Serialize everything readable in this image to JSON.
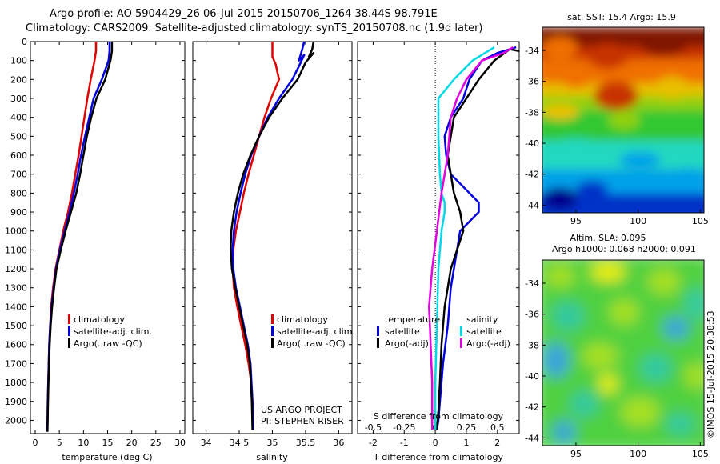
{
  "title": {
    "line1": "Argo profile: AO 5904429_26 06-Jul-2015 20150706_1264 38.44S 98.791E",
    "line2": "Climatology: CARS2009. Satellite-adjusted climatology: synTS_20150708.nc (1.9d later)"
  },
  "credit": "©IMOS 15-Jul-2015 20:38:53",
  "chart_data": [
    {
      "type": "line",
      "panel": "temperature",
      "xlabel": "temperature (deg C)",
      "xlim": [
        -1,
        31
      ],
      "xticks": [
        0,
        5,
        10,
        15,
        20,
        25,
        30
      ],
      "ylim": [
        2070,
        0
      ],
      "yticks": [
        0,
        100,
        200,
        300,
        400,
        500,
        600,
        700,
        800,
        900,
        1000,
        1100,
        1200,
        1300,
        1400,
        1500,
        1600,
        1700,
        1800,
        1900,
        2000
      ],
      "legend": {
        "placement": "lower-right",
        "entries": [
          "climatology",
          "satellite-adj. clim.",
          "Argo(..raw -QC)"
        ]
      },
      "series": [
        {
          "name": "climatology",
          "color": "#e00000",
          "x": [
            12.6,
            12.6,
            12.3,
            11.5,
            10.8,
            10.2,
            9.6,
            9.0,
            8.3,
            7.6,
            6.8,
            5.8,
            5.0,
            4.2,
            3.7,
            3.3,
            3.1,
            2.9,
            2.8,
            2.7,
            2.6,
            2.55,
            2.5,
            2.5
          ],
          "y": [
            0,
            50,
            100,
            200,
            300,
            400,
            500,
            600,
            700,
            800,
            900,
            1000,
            1100,
            1200,
            1300,
            1400,
            1500,
            1600,
            1700,
            1800,
            1900,
            2000,
            2050,
            2060
          ]
        },
        {
          "name": "satellite-adj. clim.",
          "color": "#0000e0",
          "x": [
            15.4,
            15.4,
            15.2,
            13.8,
            12.1,
            11.2,
            10.3,
            9.5,
            8.8,
            8.0,
            7.1,
            6.1,
            5.1,
            4.3,
            3.8,
            3.4,
            3.1,
            2.9,
            2.8,
            2.7,
            2.6,
            2.55,
            2.5,
            2.5
          ],
          "y": [
            0,
            50,
            100,
            200,
            300,
            400,
            500,
            600,
            700,
            800,
            900,
            1000,
            1100,
            1200,
            1300,
            1400,
            1500,
            1600,
            1700,
            1800,
            1900,
            2000,
            2050,
            2060
          ]
        },
        {
          "name": "Argo(..raw -QC)",
          "color": "#000000",
          "x": [
            15.9,
            15.9,
            15.6,
            14.5,
            12.7,
            11.6,
            10.7,
            10.0,
            9.3,
            8.5,
            7.4,
            6.3,
            5.3,
            4.4,
            3.9,
            3.5,
            3.2,
            3.0,
            2.85,
            2.75,
            2.65,
            2.58,
            2.55,
            2.55
          ],
          "y": [
            0,
            50,
            100,
            200,
            300,
            400,
            500,
            600,
            700,
            800,
            900,
            1000,
            1100,
            1200,
            1300,
            1400,
            1500,
            1600,
            1700,
            1800,
            1900,
            2000,
            2050,
            2060
          ]
        }
      ]
    },
    {
      "type": "line",
      "panel": "salinity",
      "xlabel": "salinity",
      "xlim": [
        33.8,
        36.2
      ],
      "xticks": [
        34,
        34.5,
        35,
        35.5,
        36
      ],
      "xtick_labels": [
        "34",
        "34.5",
        "35",
        "35.5",
        "36"
      ],
      "ylim": [
        2070,
        0
      ],
      "legend": {
        "placement": "lower-right",
        "entries": [
          "climatology",
          "satellite-adj. clim.",
          "Argo(..raw -QC)"
        ]
      },
      "annotation": [
        "US ARGO PROJECT",
        "PI: STEPHEN RISER"
      ],
      "series": [
        {
          "name": "climatology",
          "color": "#e00000",
          "x": [
            35.0,
            35.0,
            35.05,
            35.1,
            34.98,
            34.88,
            34.8,
            34.72,
            34.64,
            34.57,
            34.51,
            34.45,
            34.41,
            34.4,
            34.42,
            34.47,
            34.53,
            34.59,
            34.64,
            34.68,
            34.7,
            34.71
          ],
          "y": [
            0,
            80,
            120,
            200,
            300,
            400,
            500,
            600,
            700,
            800,
            900,
            1000,
            1100,
            1200,
            1300,
            1400,
            1500,
            1600,
            1700,
            1800,
            1900,
            2050
          ]
        },
        {
          "name": "satellite-adj. clim.",
          "color": "#0000e0",
          "x": [
            35.48,
            35.45,
            35.4,
            35.48,
            35.4,
            35.3,
            35.1,
            34.93,
            34.8,
            34.68,
            34.59,
            34.52,
            34.46,
            34.42,
            34.4,
            34.41,
            34.45,
            34.51,
            34.57,
            34.63,
            34.67,
            34.7,
            34.71
          ],
          "y": [
            0,
            40,
            100,
            70,
            130,
            200,
            300,
            400,
            500,
            600,
            700,
            800,
            900,
            1000,
            1100,
            1200,
            1300,
            1400,
            1500,
            1600,
            1700,
            1900,
            2050
          ]
        },
        {
          "name": "Argo(..raw -QC)",
          "color": "#000000",
          "x": [
            35.62,
            35.6,
            35.55,
            35.62,
            35.5,
            35.38,
            35.15,
            34.95,
            34.8,
            34.67,
            34.56,
            34.48,
            34.42,
            34.38,
            34.37,
            34.39,
            34.44,
            34.5,
            34.56,
            34.62,
            34.66,
            34.69,
            34.7
          ],
          "y": [
            0,
            40,
            80,
            60,
            110,
            200,
            300,
            400,
            500,
            600,
            700,
            800,
            900,
            1000,
            1100,
            1200,
            1300,
            1400,
            1500,
            1600,
            1700,
            1900,
            2050
          ]
        }
      ]
    },
    {
      "type": "line",
      "panel": "difference",
      "xlabel": "T difference from climatology",
      "xlabel_top": "S difference from climatology",
      "xlim": [
        -2.5,
        2.7
      ],
      "xticks": [
        -2,
        -1,
        0,
        1,
        2
      ],
      "xtick_labels": [
        "-2",
        "-1",
        "0",
        "1",
        "2"
      ],
      "xticks_top": [
        -2,
        -1,
        0,
        1,
        2
      ],
      "xtick_labels_top": [
        "-0.5",
        "-0.25",
        "0",
        "0.25",
        "0.5"
      ],
      "ylim": [
        2070,
        0
      ],
      "zero_line": "dotted",
      "legend": {
        "placement": "lower",
        "headers": [
          "temperature",
          "salinity"
        ],
        "entries": [
          "satellite",
          "Argo(-adj)",
          "satellite",
          "Argo(-adj)"
        ]
      },
      "series": [
        {
          "name": "satellite",
          "group": "temperature",
          "color": "#0000e0",
          "x": [
            2.6,
            2.0,
            1.5,
            1.1,
            0.9,
            0.5,
            0.3,
            0.35,
            0.5,
            0.8,
            1.1,
            1.4,
            1.4,
            0.8,
            0.7,
            0.6,
            0.5,
            0.4,
            0.25,
            0.15,
            0.1,
            0.05
          ],
          "y": [
            30,
            60,
            100,
            200,
            300,
            400,
            500,
            600,
            700,
            750,
            800,
            850,
            900,
            1000,
            1100,
            1200,
            1300,
            1500,
            1700,
            1900,
            2000,
            2050
          ]
        },
        {
          "name": "Argo(-adj)",
          "group": "temperature",
          "color": "#000000",
          "x": [
            3.3,
            2.4,
            1.9,
            1.4,
            1.0,
            0.6,
            0.5,
            0.4,
            0.5,
            0.6,
            0.8,
            0.9,
            0.7,
            0.5,
            0.4,
            0.3,
            0.2,
            0.15,
            0.1,
            0.05
          ],
          "y": [
            70,
            40,
            100,
            200,
            300,
            400,
            500,
            600,
            700,
            800,
            900,
            1000,
            1100,
            1200,
            1300,
            1400,
            1600,
            1800,
            1950,
            2050
          ]
        },
        {
          "name": "satellite",
          "group": "salinity",
          "color": "#00d8e8",
          "x": [
            1.9,
            1.6,
            1.2,
            0.6,
            0.1,
            0.1,
            0.15,
            0.2,
            0.3,
            0.3,
            0.2,
            0.1,
            0.05,
            0.0,
            0.0
          ],
          "y": [
            30,
            60,
            100,
            200,
            300,
            500,
            700,
            800,
            850,
            900,
            1000,
            1200,
            1500,
            1800,
            2050
          ]
        },
        {
          "name": "Argo(-adj)",
          "group": "salinity",
          "color": "#e000e0",
          "x": [
            2.5,
            2.2,
            1.5,
            1.0,
            0.7,
            0.5,
            0.4,
            0.2,
            0.05,
            -0.1,
            -0.2,
            -0.15,
            -0.1,
            -0.1
          ],
          "y": [
            30,
            60,
            100,
            200,
            300,
            400,
            600,
            800,
            1000,
            1200,
            1400,
            1600,
            1800,
            2050
          ]
        }
      ]
    },
    {
      "type": "heatmap",
      "panel": "sst-map",
      "title": "sat. SST: 15.4 Argo: 15.9",
      "xlim": [
        92.3,
        105.3
      ],
      "xticks": [
        95,
        100,
        105
      ],
      "ylim": [
        -44.5,
        -32.5
      ],
      "yticks": [
        -44,
        -42,
        -40,
        -38,
        -36,
        -34
      ],
      "colors": [
        "#00008c",
        "#0030c8",
        "#00a0e8",
        "#20d8c0",
        "#30c830",
        "#90d010",
        "#e8c000",
        "#f07000",
        "#c83000",
        "#801800"
      ]
    },
    {
      "type": "heatmap",
      "panel": "sla-map",
      "title": "Altim. SLA: 0.095",
      "subtitle": "Argo h1000: 0.068 h2000: 0.091",
      "xlim": [
        92.3,
        105.3
      ],
      "xticks": [
        95,
        100,
        105
      ],
      "ylim": [
        -44.5,
        -32.5
      ],
      "yticks": [
        -44,
        -42,
        -40,
        -38,
        -36,
        -34
      ],
      "colors": [
        "#3aa0e0",
        "#30c8a0",
        "#50d040",
        "#a8e020",
        "#f0f000"
      ]
    }
  ]
}
